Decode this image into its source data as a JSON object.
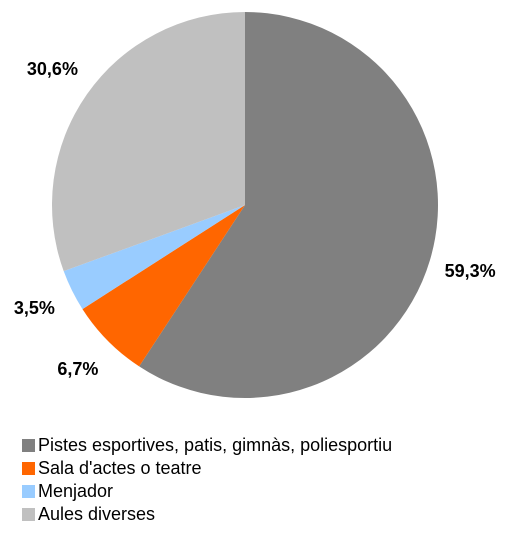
{
  "chart_data": {
    "type": "pie",
    "categories": [
      "Pistes esportives, patis, gimnàs, poliesportiu",
      "Sala d'actes o teatre",
      "Menjador",
      "Aules diverses"
    ],
    "values": [
      59.3,
      6.7,
      3.5,
      30.6
    ],
    "value_labels": [
      "59,3%",
      "6,7%",
      "3,5%",
      "30,6%"
    ],
    "colors": [
      "#808080",
      "#ff6600",
      "#99ccff",
      "#c0c0c0"
    ]
  }
}
